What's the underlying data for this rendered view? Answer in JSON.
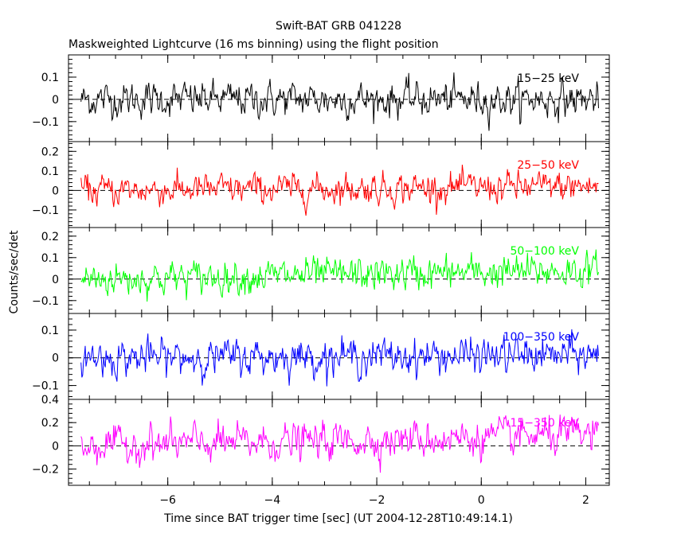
{
  "chart_data": {
    "type": "line",
    "title": "Swift-BAT GRB 041228",
    "subtitle": "Maskweighted Lightcurve (16 ms binning) using the flight position",
    "xlabel": "Time since BAT trigger time [sec] (UT 2004-12-28T10:49:14.1)",
    "ylabel": "Counts/sec/det",
    "xlim": [
      -7.9,
      2.45
    ],
    "x_ticks": [
      -6,
      -4,
      -2,
      0,
      2
    ],
    "x_tick_labels": [
      "−6",
      "−4",
      "−2",
      "0",
      "2"
    ],
    "series_x_range": [
      -7.66,
      2.24
    ],
    "bin_width_sec": 0.016,
    "panels": [
      {
        "name": "15-25 keV",
        "label": "15−25 keV",
        "color": "#000000",
        "ylim": [
          -0.19,
          0.2
        ],
        "yticks": [
          -0.1,
          0,
          0.1
        ],
        "ytick_labels": [
          "−0.1",
          "0",
          "0.1"
        ],
        "noise_amplitude": 0.055,
        "trend": [
          0,
          0
        ]
      },
      {
        "name": "25-50 keV",
        "label": "25−50 keV",
        "color": "#ff0000",
        "ylim": [
          -0.19,
          0.25
        ],
        "yticks": [
          -0.1,
          0,
          0.1,
          0.2
        ],
        "ytick_labels": [
          "−0.1",
          "0",
          "0.1",
          "0.2"
        ],
        "noise_amplitude": 0.055,
        "trend": [
          0,
          0.02
        ]
      },
      {
        "name": "50-100 keV",
        "label": "50−100 keV",
        "color": "#00ff00",
        "ylim": [
          -0.16,
          0.24
        ],
        "yticks": [
          -0.1,
          0,
          0.1,
          0.2
        ],
        "ytick_labels": [
          "−0.1",
          "0",
          "0.1",
          "0.2"
        ],
        "noise_amplitude": 0.055,
        "trend": [
          0,
          0.04
        ]
      },
      {
        "name": "100-350 keV",
        "label": "100−350 keV",
        "color": "#0000ff",
        "ylim": [
          -0.15,
          0.16
        ],
        "yticks": [
          -0.1,
          0,
          0.1
        ],
        "ytick_labels": [
          "−0.1",
          "0",
          "0.1"
        ],
        "noise_amplitude": 0.045,
        "trend": [
          0,
          0.01
        ]
      },
      {
        "name": "15-350 keV",
        "label": "15−350 keV",
        "color": "#ff00ff",
        "ylim": [
          -0.34,
          0.4
        ],
        "yticks": [
          -0.2,
          0,
          0.2,
          0.4
        ],
        "ytick_labels": [
          "−0.2",
          "0",
          "0.2",
          "0.4"
        ],
        "noise_amplitude": 0.11,
        "trend": [
          0,
          0.09
        ]
      }
    ]
  }
}
